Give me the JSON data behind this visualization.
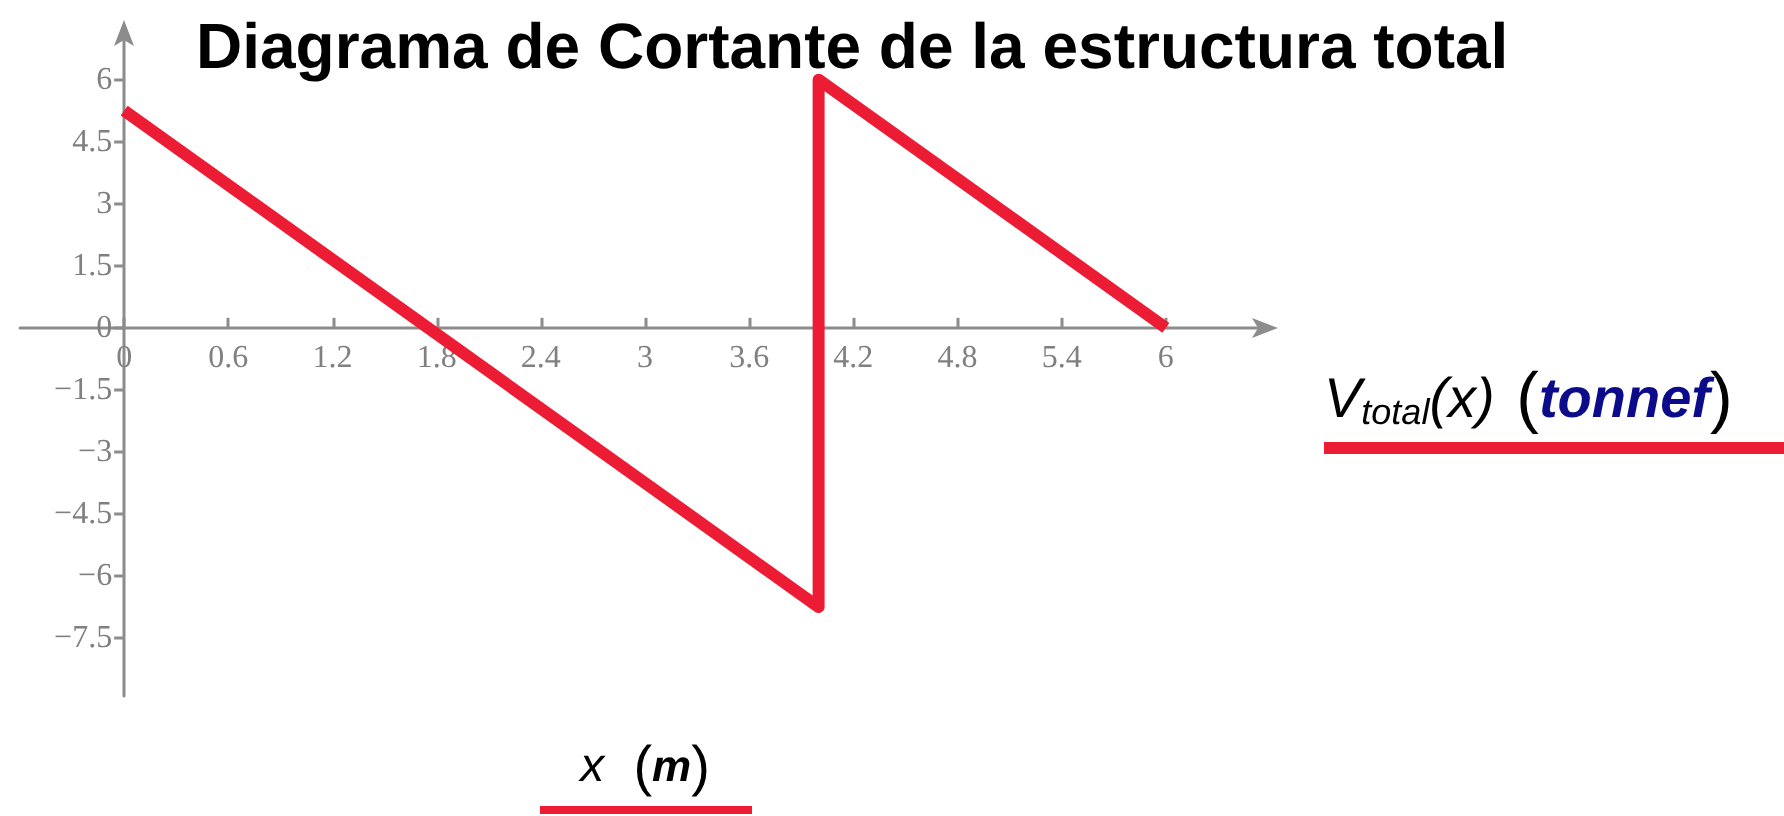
{
  "chart_data": {
    "type": "line",
    "title": "Diagrama de Cortante de la estructura total",
    "xlabel": "x (m)",
    "x": [
      0,
      4,
      4,
      6
    ],
    "series": [
      {
        "name": "V$_{total}$(x) (tonnef)",
        "color": "#ec1c34",
        "values": [
          5.25,
          -6.75,
          6,
          0
        ]
      }
    ],
    "xlim": [
      -0.6,
      6.6
    ],
    "ylim": [
      -8.9,
      7.2
    ],
    "xticks": [
      0,
      0.6,
      1.2,
      1.8,
      2.4,
      3,
      3.6,
      4.2,
      4.8,
      5.4,
      6
    ],
    "yticks": [
      {
        "value": -7.5,
        "label": "−7.5"
      },
      {
        "value": -6,
        "label": "−6"
      },
      {
        "value": -4.5,
        "label": "−4.5"
      },
      {
        "value": -3,
        "label": "−3"
      },
      {
        "value": -1.5,
        "label": "−1.5"
      },
      0,
      1.5,
      3,
      4.5,
      6
    ],
    "legend": "right",
    "marker": "none"
  }
}
